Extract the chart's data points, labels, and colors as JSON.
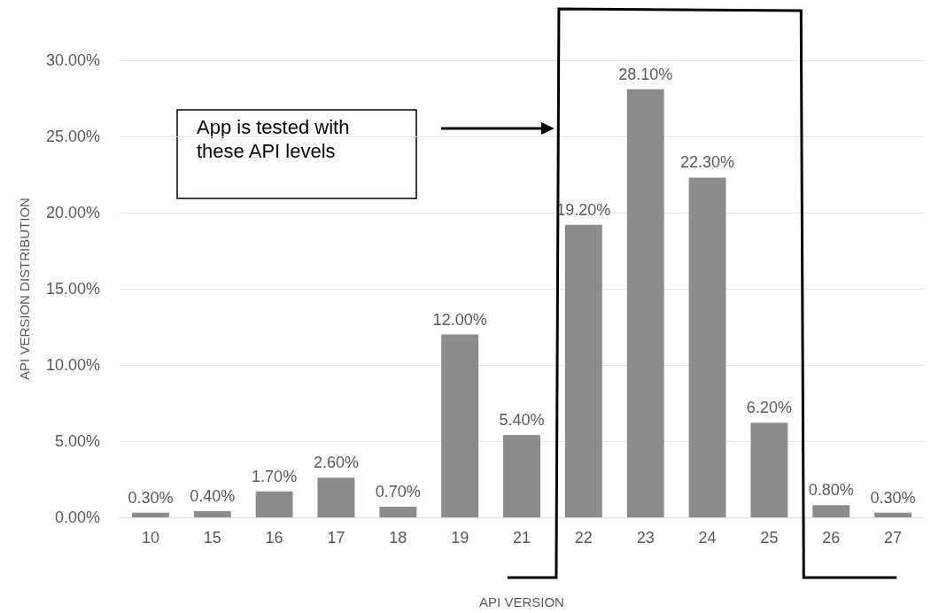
{
  "chart_data": {
    "type": "bar",
    "xlabel": "API VERSION",
    "ylabel": "API VERSION DISTRIBUTION",
    "categories": [
      "10",
      "15",
      "16",
      "17",
      "18",
      "19",
      "21",
      "22",
      "23",
      "24",
      "25",
      "26",
      "27"
    ],
    "values": [
      0.3,
      0.4,
      1.7,
      2.6,
      0.7,
      12.0,
      5.4,
      19.2,
      28.1,
      22.3,
      6.2,
      0.8,
      0.3
    ],
    "value_labels": [
      "0.30%",
      "0.40%",
      "1.70%",
      "2.60%",
      "0.70%",
      "12.00%",
      "5.40%",
      "19.20%",
      "28.10%",
      "22.30%",
      "6.20%",
      "0.80%",
      "0.30%"
    ],
    "color": "#8c8c8c",
    "ylim": [
      0,
      30
    ],
    "yticks": [
      {
        "value": 0,
        "label": "0.00%"
      },
      {
        "value": 5,
        "label": "5.00%"
      },
      {
        "value": 10,
        "label": "10.00%"
      },
      {
        "value": 15,
        "label": "15.00%"
      },
      {
        "value": 20,
        "label": "20.00%"
      },
      {
        "value": 25,
        "label": "25.00%"
      },
      {
        "value": 30,
        "label": "30.00%"
      }
    ],
    "grid": "y",
    "annotations": [
      "App is tested with these API levels"
    ]
  }
}
